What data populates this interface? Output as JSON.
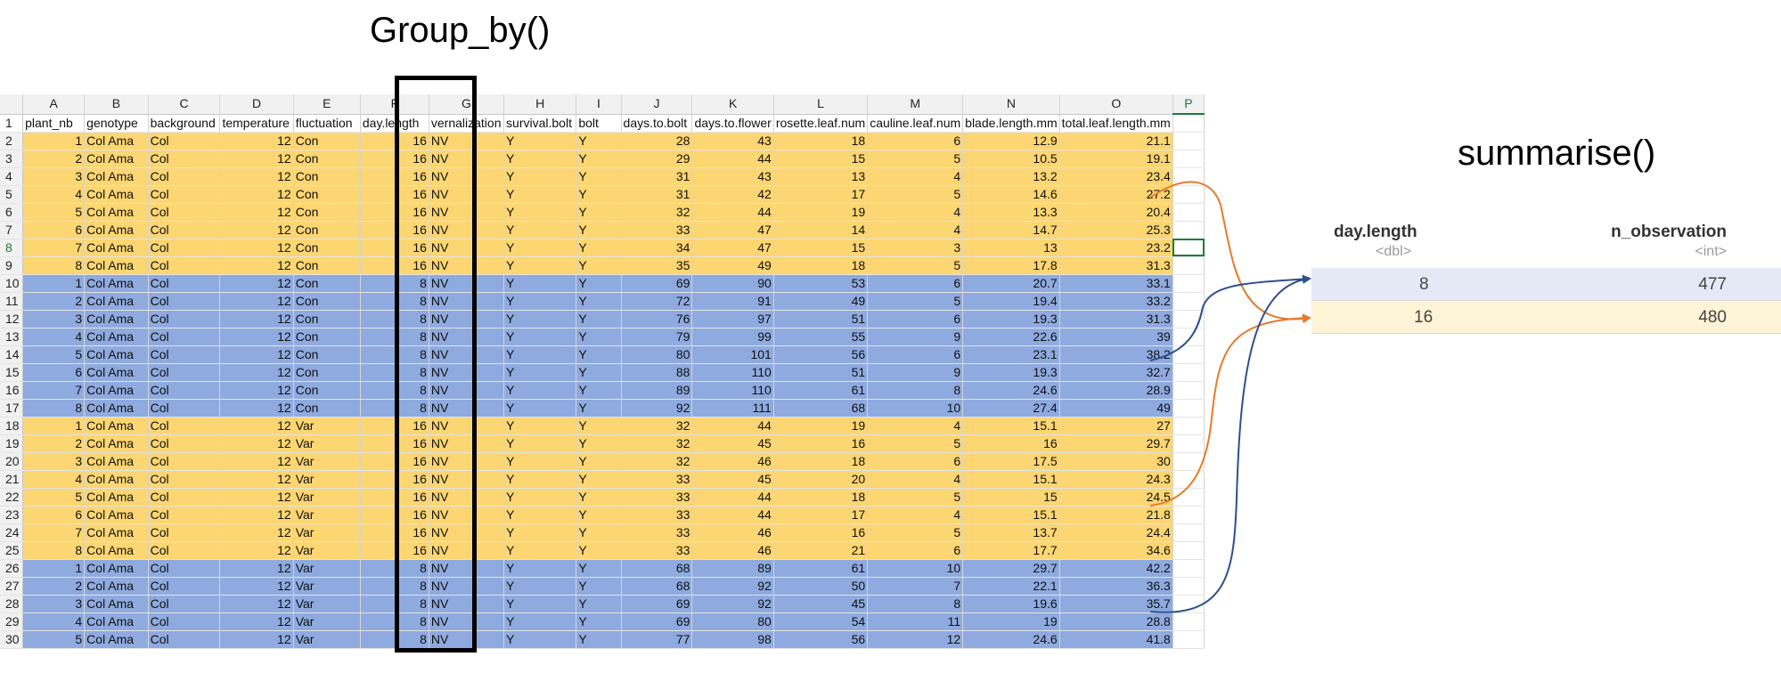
{
  "titles": {
    "group_by": "Group_by()",
    "summarise": "summarise()"
  },
  "sheet": {
    "columns": [
      "A",
      "B",
      "C",
      "D",
      "E",
      "F",
      "G",
      "H",
      "I",
      "J",
      "K",
      "L",
      "M",
      "N",
      "O",
      "P"
    ],
    "selected_column": "P",
    "header_row": [
      "plant_nb",
      "genotype",
      "background",
      "temperature",
      "fluctuation",
      "day.length",
      "vernalization",
      "survival.bolt",
      "bolt",
      "days.to.bolt",
      "days.to.flower",
      "rosette.leaf.num",
      "cauline.leaf.num",
      "blade.length.mm",
      "total.leaf.length.mm",
      ""
    ],
    "rows": [
      {
        "n": "2",
        "g": "y",
        "v": [
          "1",
          "Col Ama",
          "Col",
          "12",
          "Con",
          "16",
          "NV",
          "Y",
          "Y",
          "28",
          "43",
          "18",
          "6",
          "12.9",
          "21.1"
        ]
      },
      {
        "n": "3",
        "g": "y",
        "v": [
          "2",
          "Col Ama",
          "Col",
          "12",
          "Con",
          "16",
          "NV",
          "Y",
          "Y",
          "29",
          "44",
          "15",
          "5",
          "10.5",
          "19.1"
        ]
      },
      {
        "n": "4",
        "g": "y",
        "v": [
          "3",
          "Col Ama",
          "Col",
          "12",
          "Con",
          "16",
          "NV",
          "Y",
          "Y",
          "31",
          "43",
          "13",
          "4",
          "13.2",
          "23.4"
        ]
      },
      {
        "n": "5",
        "g": "y",
        "v": [
          "4",
          "Col Ama",
          "Col",
          "12",
          "Con",
          "16",
          "NV",
          "Y",
          "Y",
          "31",
          "42",
          "17",
          "5",
          "14.6",
          "27.2"
        ]
      },
      {
        "n": "6",
        "g": "y",
        "v": [
          "5",
          "Col Ama",
          "Col",
          "12",
          "Con",
          "16",
          "NV",
          "Y",
          "Y",
          "32",
          "44",
          "19",
          "4",
          "13.3",
          "20.4"
        ]
      },
      {
        "n": "7",
        "g": "y",
        "v": [
          "6",
          "Col Ama",
          "Col",
          "12",
          "Con",
          "16",
          "NV",
          "Y",
          "Y",
          "33",
          "47",
          "14",
          "4",
          "14.7",
          "25.3"
        ]
      },
      {
        "n": "8",
        "g": "y",
        "v": [
          "7",
          "Col Ama",
          "Col",
          "12",
          "Con",
          "16",
          "NV",
          "Y",
          "Y",
          "34",
          "47",
          "15",
          "3",
          "13",
          "23.2"
        ]
      },
      {
        "n": "9",
        "g": "y",
        "v": [
          "8",
          "Col Ama",
          "Col",
          "12",
          "Con",
          "16",
          "NV",
          "Y",
          "Y",
          "35",
          "49",
          "18",
          "5",
          "17.8",
          "31.3"
        ]
      },
      {
        "n": "10",
        "g": "b",
        "v": [
          "1",
          "Col Ama",
          "Col",
          "12",
          "Con",
          "8",
          "NV",
          "Y",
          "Y",
          "69",
          "90",
          "53",
          "6",
          "20.7",
          "33.1"
        ]
      },
      {
        "n": "11",
        "g": "b",
        "v": [
          "2",
          "Col Ama",
          "Col",
          "12",
          "Con",
          "8",
          "NV",
          "Y",
          "Y",
          "72",
          "91",
          "49",
          "5",
          "19.4",
          "33.2"
        ]
      },
      {
        "n": "12",
        "g": "b",
        "v": [
          "3",
          "Col Ama",
          "Col",
          "12",
          "Con",
          "8",
          "NV",
          "Y",
          "Y",
          "76",
          "97",
          "51",
          "6",
          "19.3",
          "31.3"
        ]
      },
      {
        "n": "13",
        "g": "b",
        "v": [
          "4",
          "Col Ama",
          "Col",
          "12",
          "Con",
          "8",
          "NV",
          "Y",
          "Y",
          "79",
          "99",
          "55",
          "9",
          "22.6",
          "39"
        ]
      },
      {
        "n": "14",
        "g": "b",
        "v": [
          "5",
          "Col Ama",
          "Col",
          "12",
          "Con",
          "8",
          "NV",
          "Y",
          "Y",
          "80",
          "101",
          "56",
          "6",
          "23.1",
          "38.2"
        ]
      },
      {
        "n": "15",
        "g": "b",
        "v": [
          "6",
          "Col Ama",
          "Col",
          "12",
          "Con",
          "8",
          "NV",
          "Y",
          "Y",
          "88",
          "110",
          "51",
          "9",
          "19.3",
          "32.7"
        ]
      },
      {
        "n": "16",
        "g": "b",
        "v": [
          "7",
          "Col Ama",
          "Col",
          "12",
          "Con",
          "8",
          "NV",
          "Y",
          "Y",
          "89",
          "110",
          "61",
          "8",
          "24.6",
          "28.9"
        ]
      },
      {
        "n": "17",
        "g": "b",
        "v": [
          "8",
          "Col Ama",
          "Col",
          "12",
          "Con",
          "8",
          "NV",
          "Y",
          "Y",
          "92",
          "111",
          "68",
          "10",
          "27.4",
          "49"
        ]
      },
      {
        "n": "18",
        "g": "y",
        "v": [
          "1",
          "Col Ama",
          "Col",
          "12",
          "Var",
          "16",
          "NV",
          "Y",
          "Y",
          "32",
          "44",
          "19",
          "4",
          "15.1",
          "27"
        ]
      },
      {
        "n": "19",
        "g": "y",
        "v": [
          "2",
          "Col Ama",
          "Col",
          "12",
          "Var",
          "16",
          "NV",
          "Y",
          "Y",
          "32",
          "45",
          "16",
          "5",
          "16",
          "29.7"
        ]
      },
      {
        "n": "20",
        "g": "y",
        "v": [
          "3",
          "Col Ama",
          "Col",
          "12",
          "Var",
          "16",
          "NV",
          "Y",
          "Y",
          "32",
          "46",
          "18",
          "6",
          "17.5",
          "30"
        ]
      },
      {
        "n": "21",
        "g": "y",
        "v": [
          "4",
          "Col Ama",
          "Col",
          "12",
          "Var",
          "16",
          "NV",
          "Y",
          "Y",
          "33",
          "45",
          "20",
          "4",
          "15.1",
          "24.3"
        ]
      },
      {
        "n": "22",
        "g": "y",
        "v": [
          "5",
          "Col Ama",
          "Col",
          "12",
          "Var",
          "16",
          "NV",
          "Y",
          "Y",
          "33",
          "44",
          "18",
          "5",
          "15",
          "24.5"
        ]
      },
      {
        "n": "23",
        "g": "y",
        "v": [
          "6",
          "Col Ama",
          "Col",
          "12",
          "Var",
          "16",
          "NV",
          "Y",
          "Y",
          "33",
          "44",
          "17",
          "4",
          "15.1",
          "21.8"
        ]
      },
      {
        "n": "24",
        "g": "y",
        "v": [
          "7",
          "Col Ama",
          "Col",
          "12",
          "Var",
          "16",
          "NV",
          "Y",
          "Y",
          "33",
          "46",
          "16",
          "5",
          "13.7",
          "24.4"
        ]
      },
      {
        "n": "25",
        "g": "y",
        "v": [
          "8",
          "Col Ama",
          "Col",
          "12",
          "Var",
          "16",
          "NV",
          "Y",
          "Y",
          "33",
          "46",
          "21",
          "6",
          "17.7",
          "34.6"
        ]
      },
      {
        "n": "26",
        "g": "b",
        "v": [
          "1",
          "Col Ama",
          "Col",
          "12",
          "Var",
          "8",
          "NV",
          "Y",
          "Y",
          "68",
          "89",
          "61",
          "10",
          "29.7",
          "42.2"
        ]
      },
      {
        "n": "27",
        "g": "b",
        "v": [
          "2",
          "Col Ama",
          "Col",
          "12",
          "Var",
          "8",
          "NV",
          "Y",
          "Y",
          "68",
          "92",
          "50",
          "7",
          "22.1",
          "36.3"
        ]
      },
      {
        "n": "28",
        "g": "b",
        "v": [
          "3",
          "Col Ama",
          "Col",
          "12",
          "Var",
          "8",
          "NV",
          "Y",
          "Y",
          "69",
          "92",
          "45",
          "8",
          "19.6",
          "35.7"
        ]
      },
      {
        "n": "29",
        "g": "b",
        "v": [
          "4",
          "Col Ama",
          "Col",
          "12",
          "Var",
          "8",
          "NV",
          "Y",
          "Y",
          "69",
          "80",
          "54",
          "11",
          "19",
          "28.8"
        ]
      },
      {
        "n": "30",
        "g": "b",
        "v": [
          "5",
          "Col Ama",
          "Col",
          "12",
          "Var",
          "8",
          "NV",
          "Y",
          "Y",
          "77",
          "98",
          "56",
          "12",
          "24.6",
          "41.8"
        ]
      }
    ]
  },
  "summary": {
    "headers": [
      {
        "name": "day.length",
        "type": "<dbl>"
      },
      {
        "name": "n_observation",
        "type": "<int>"
      }
    ],
    "rows": [
      {
        "day_length": "8",
        "n_observation": "477"
      },
      {
        "day_length": "16",
        "n_observation": "480"
      }
    ]
  },
  "colors": {
    "group_16": "#fcd672",
    "group_8": "#8faadf",
    "summary_row_8": "#e4e9f5",
    "summary_row_16": "#fdf3d6",
    "arrow_orange": "#e87a2c",
    "arrow_blue": "#2e4f8e",
    "selection": "#1d7a3a"
  }
}
